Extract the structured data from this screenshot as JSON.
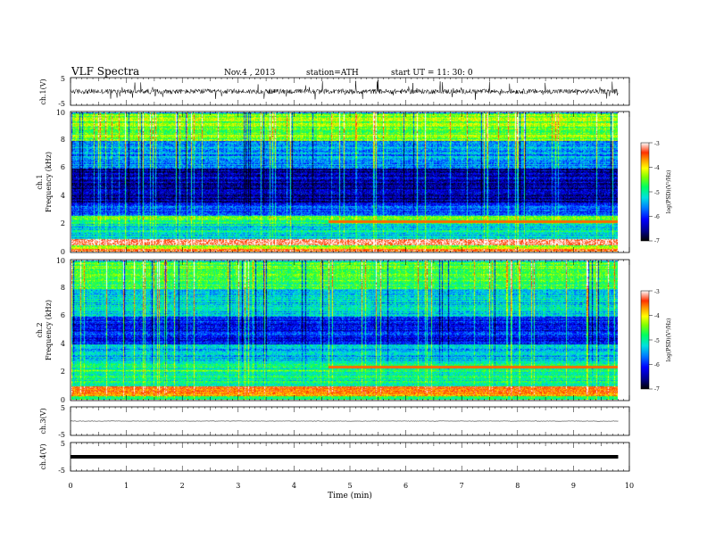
{
  "header": {
    "title": "VLF  Spectra",
    "date": "Nov.4  , 2013",
    "station": "station=ATH",
    "start_ut": "start  UT  =   11: 30: 0"
  },
  "chart_data": [
    {
      "type": "line",
      "panel": "ch1-waveform",
      "ylabel": "ch.1(V)",
      "ylim": [
        -5,
        5
      ],
      "yticks": [
        5,
        -5
      ],
      "xlim": [
        0,
        10
      ],
      "data_end_min": 9.8,
      "baseline_v": 0,
      "fluctuation_v": [
        -1,
        1
      ],
      "spikes_v": [
        -3,
        4
      ]
    },
    {
      "type": "heatmap",
      "panel": "ch1-spectrogram",
      "ylabel": "ch.1\nFrequency  (kHz)",
      "ylim": [
        0,
        10
      ],
      "yticks": [
        0,
        2,
        4,
        6,
        8,
        10
      ],
      "xlim": [
        0,
        10
      ],
      "data_end_min": 9.8,
      "colorbar": {
        "label": "log(PSD)(V²/Hz)",
        "range": [
          -7,
          -3
        ],
        "ticks": [
          "-3",
          "-4",
          "-5",
          "-6",
          "-7"
        ]
      },
      "bands": [
        {
          "f": [
            0,
            0.25
          ],
          "level": -3.6
        },
        {
          "f": [
            0.25,
            0.5
          ],
          "level": -4.6
        },
        {
          "f": [
            0.5,
            0.9
          ],
          "level": -3.4
        },
        {
          "f": [
            0.9,
            2.0
          ],
          "level": -5.4
        },
        {
          "f": [
            2.0,
            2.6
          ],
          "level": -5.0
        },
        {
          "f": [
            2.6,
            3.4
          ],
          "level": -6.0
        },
        {
          "f": [
            3.4,
            6.0
          ],
          "level": -6.6
        },
        {
          "f": [
            6.0,
            8.0
          ],
          "level": -5.8
        },
        {
          "f": [
            8.0,
            10.0
          ],
          "level": -4.8
        }
      ],
      "change_time_min": 4.6,
      "line_after_change_khz": 2.2
    },
    {
      "type": "heatmap",
      "panel": "ch2-spectrogram",
      "ylabel": "ch.2\nFrequency  (kHz)",
      "ylim": [
        0,
        10
      ],
      "yticks": [
        0,
        2,
        4,
        6,
        8,
        10
      ],
      "xlim": [
        0,
        10
      ],
      "data_end_min": 9.8,
      "colorbar": {
        "label": "log(PSD)(V²/Hz)",
        "range": [
          -7,
          -3
        ],
        "ticks": [
          "-3",
          "-4",
          "-5",
          "-6",
          "-7"
        ]
      },
      "bands": [
        {
          "f": [
            0,
            0.3
          ],
          "level": -5.0
        },
        {
          "f": [
            0.3,
            1.0
          ],
          "level": -3.8
        },
        {
          "f": [
            1.0,
            2.6
          ],
          "level": -5.2
        },
        {
          "f": [
            2.6,
            4.0
          ],
          "level": -5.6
        },
        {
          "f": [
            4.0,
            6.0
          ],
          "level": -6.3
        },
        {
          "f": [
            6.0,
            8.0
          ],
          "level": -5.6
        },
        {
          "f": [
            8.0,
            10.0
          ],
          "level": -5.0
        }
      ],
      "change_time_min": 4.6,
      "line_after_change_khz": 2.4
    },
    {
      "type": "line",
      "panel": "ch3-waveform",
      "ylabel": "ch.3(V)",
      "ylim": [
        -5,
        5
      ],
      "yticks": [
        5,
        -5
      ],
      "xlim": [
        0,
        10
      ],
      "data_end_min": 9.8,
      "baseline_v": 0
    },
    {
      "type": "line",
      "panel": "ch4-waveform",
      "ylabel": "ch.4(V)",
      "ylim": [
        -5,
        5
      ],
      "yticks": [
        5,
        -5
      ],
      "xlim": [
        0,
        10
      ],
      "data_end_min": 9.8,
      "baseline_v": 0
    }
  ],
  "xaxis": {
    "label": "Time  (min)",
    "ticks": [
      "0",
      "1",
      "2",
      "3",
      "4",
      "5",
      "6",
      "7",
      "8",
      "9",
      "10"
    ]
  },
  "colors": {
    "scale": [
      "#000000",
      "#00008b",
      "#0000ff",
      "#0080ff",
      "#00e0e0",
      "#00ff60",
      "#80ff00",
      "#ffff00",
      "#ffa000",
      "#ff3000",
      "#ffffff"
    ]
  }
}
